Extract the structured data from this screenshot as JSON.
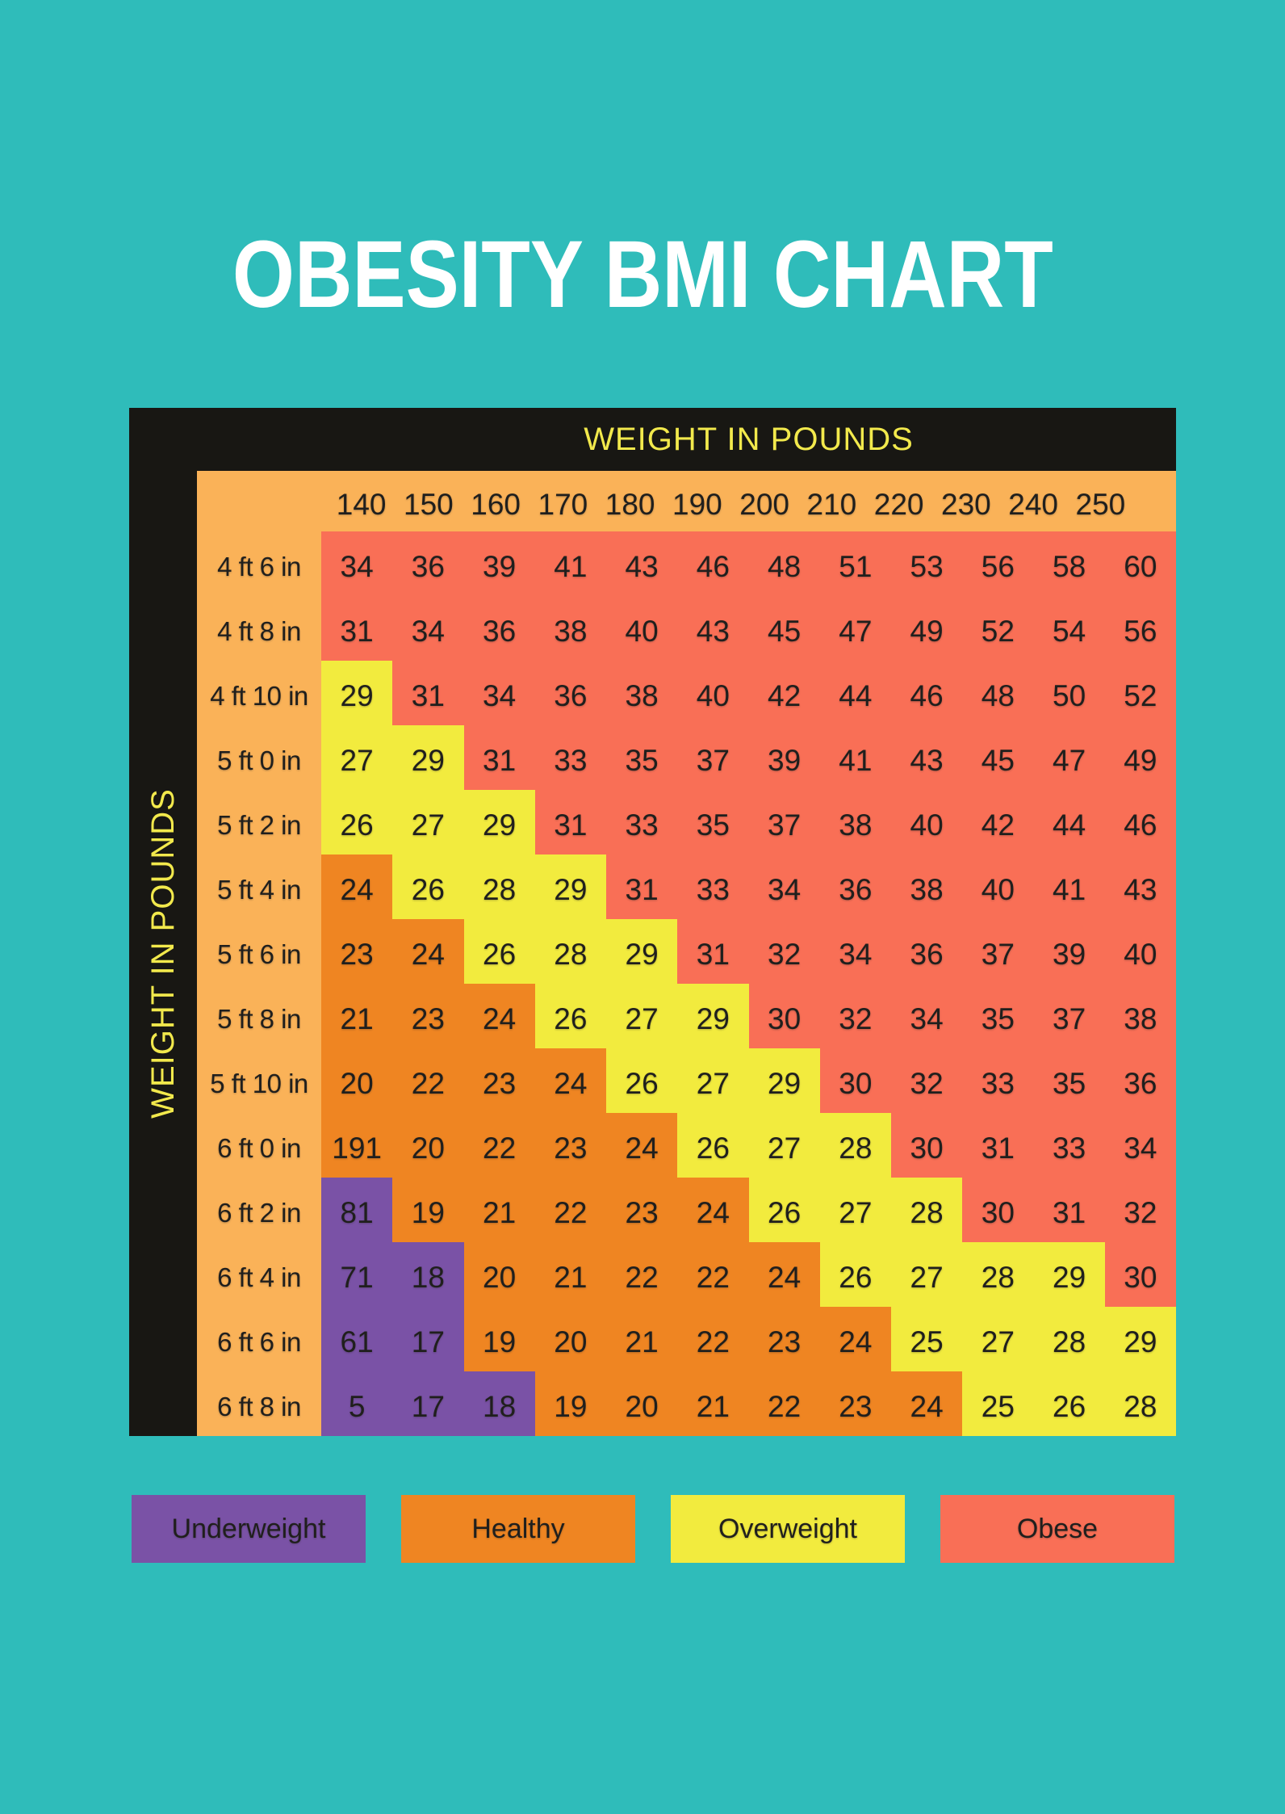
{
  "title": "OBESITY BMI CHART",
  "colors": {
    "background": "#2fbcba",
    "frame": "#181713",
    "band": "#fab258",
    "underweight": "#7a52a6",
    "healthy": "#ef8522",
    "overweight": "#f2eb3e",
    "obese": "#f96f56",
    "axis_text": "#f2e94c",
    "title_text": "#ffffff",
    "cell_text": "#201f1d"
  },
  "chart_data": {
    "type": "heatmap",
    "title": "OBESITY BMI CHART",
    "x_axis_label": "WEIGHT IN POUNDS",
    "y_axis_label": "WEIGHT IN POUNDS",
    "x_categories": [
      "140",
      "150",
      "160",
      "170",
      "180",
      "190",
      "200",
      "210",
      "220",
      "230",
      "240",
      "250"
    ],
    "y_categories": [
      "4 ft 6 in",
      "4 ft 8 in",
      "4 ft 10 in",
      "5 ft 0 in",
      "5 ft 2 in",
      "5 ft 4 in",
      "5 ft 6 in",
      "5 ft 8 in",
      "5 ft 10 in",
      "6 ft 0 in",
      "6 ft 2 in",
      "6 ft 4 in",
      "6 ft 6 in",
      "6 ft 8 in"
    ],
    "values": [
      [
        "34",
        "36",
        "39",
        "41",
        "43",
        "46",
        "48",
        "51",
        "53",
        "56",
        "58",
        "60"
      ],
      [
        "31",
        "34",
        "36",
        "38",
        "40",
        "43",
        "45",
        "47",
        "49",
        "52",
        "54",
        "56"
      ],
      [
        "29",
        "31",
        "34",
        "36",
        "38",
        "40",
        "42",
        "44",
        "46",
        "48",
        "50",
        "52"
      ],
      [
        "27",
        "29",
        "31",
        "33",
        "35",
        "37",
        "39",
        "41",
        "43",
        "45",
        "47",
        "49"
      ],
      [
        "26",
        "27",
        "29",
        "31",
        "33",
        "35",
        "37",
        "38",
        "40",
        "42",
        "44",
        "46"
      ],
      [
        "24",
        "26",
        "28",
        "29",
        "31",
        "33",
        "34",
        "36",
        "38",
        "40",
        "41",
        "43"
      ],
      [
        "23",
        "24",
        "26",
        "28",
        "29",
        "31",
        "32",
        "34",
        "36",
        "37",
        "39",
        "40"
      ],
      [
        "21",
        "23",
        "24",
        "26",
        "27",
        "29",
        "30",
        "32",
        "34",
        "35",
        "37",
        "38"
      ],
      [
        "20",
        "22",
        "23",
        "24",
        "26",
        "27",
        "29",
        "30",
        "32",
        "33",
        "35",
        "36"
      ],
      [
        "191",
        "20",
        "22",
        "23",
        "24",
        "26",
        "27",
        "28",
        "30",
        "31",
        "33",
        "34"
      ],
      [
        "81",
        "19",
        "21",
        "22",
        "23",
        "24",
        "26",
        "27",
        "28",
        "30",
        "31",
        "32"
      ],
      [
        "71",
        "18",
        "20",
        "21",
        "22",
        "22",
        "24",
        "26",
        "27",
        "28",
        "29",
        "30"
      ],
      [
        "61",
        "17",
        "19",
        "20",
        "21",
        "22",
        "23",
        "24",
        "25",
        "27",
        "28",
        "29"
      ],
      [
        "5",
        "17",
        "18",
        "19",
        "20",
        "21",
        "22",
        "23",
        "24",
        "25",
        "26",
        "28"
      ]
    ],
    "cell_categories": [
      "oooooooooooo",
      "oooooooooooo",
      "wooooooooooo",
      "wwoooooooooo",
      "wwwooooooooo",
      "hwwwoooooooo",
      "hhwwwooooooo",
      "hhhwwwoooooo",
      "hhhhwwwooooo",
      "hhhhhwwwoooo",
      "uhhhhhwwwooo",
      "uuhhhhhwwwwo",
      "uuhhhhhhwwww",
      "uuuhhhhhhwww"
    ],
    "category_names": {
      "u": "underweight",
      "h": "healthy",
      "w": "overweight",
      "o": "obese"
    },
    "legend": [
      {
        "key": "underweight",
        "label": "Underweight"
      },
      {
        "key": "healthy",
        "label": "Healthy"
      },
      {
        "key": "overweight",
        "label": "Overweight"
      },
      {
        "key": "obese",
        "label": "Obese"
      }
    ],
    "legend_position": "bottom"
  }
}
